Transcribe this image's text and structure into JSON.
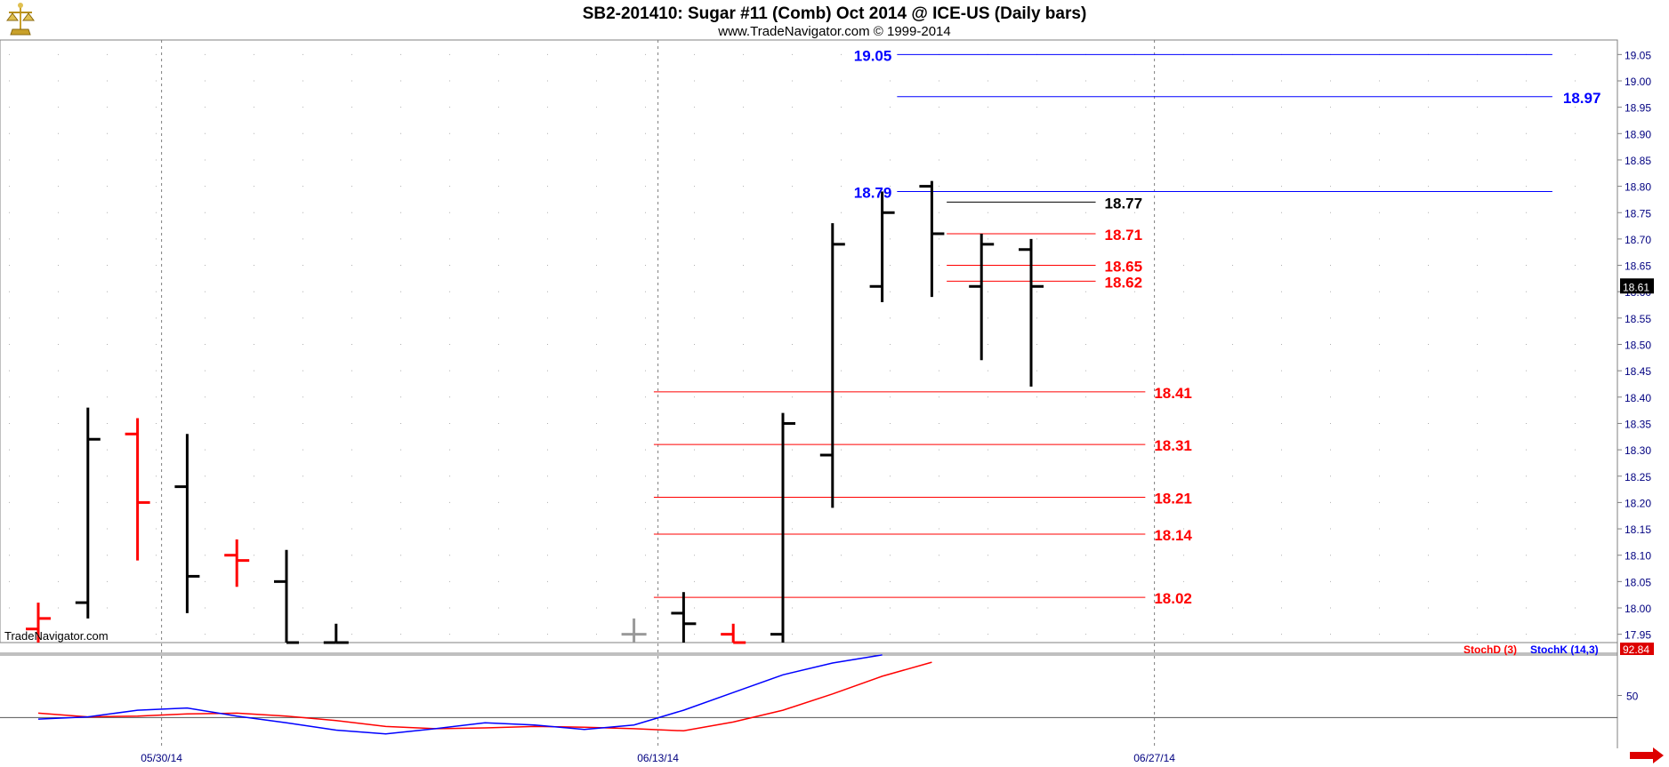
{
  "header": {
    "title": "SB2-201410:  Sugar #11 (Comb) Oct 2014 @ ICE-US  (Daily bars)",
    "subtitle": "www.TradeNavigator.com © 1999-2014",
    "logo_icon": "scales-icon"
  },
  "watermark": "TradeNavigator.com",
  "colors": {
    "background": "#ffffff",
    "bar_up": "#000000",
    "bar_down": "#ff0000",
    "level_blue": "#0000ff",
    "level_red": "#ff0000",
    "stoch_k": "#0000ff",
    "stoch_d": "#ff0000",
    "axis_text": "#000080"
  },
  "chart_data": [
    {
      "type": "ohlc",
      "title": "SB2-201410:  Sugar #11 (Comb) Oct 2014 @ ICE-US  (Daily bars)",
      "ylim": [
        17.93,
        19.1
      ],
      "y_ticks": [
        "17.95",
        "18.00",
        "18.05",
        "18.10",
        "18.15",
        "18.20",
        "18.25",
        "18.30",
        "18.35",
        "18.40",
        "18.45",
        "18.50",
        "18.55",
        "18.60",
        "18.65",
        "18.70",
        "18.75",
        "18.80",
        "18.85",
        "18.90",
        "18.95",
        "19.00",
        "19.05"
      ],
      "x_date_labels": [
        {
          "label": "05/30/14",
          "index": 2
        },
        {
          "label": "06/13/14",
          "index": 12
        },
        {
          "label": "06/27/14",
          "index": 22
        }
      ],
      "last_price": "18.61",
      "bars": [
        {
          "open": 17.96,
          "high": 18.01,
          "low": 17.93,
          "close": 17.98,
          "color": "red"
        },
        {
          "open": 18.01,
          "high": 18.38,
          "low": 17.98,
          "close": 18.32,
          "color": "black"
        },
        {
          "open": 18.33,
          "high": 18.36,
          "low": 18.09,
          "close": 18.2,
          "color": "red"
        },
        {
          "open": 18.23,
          "high": 18.33,
          "low": 17.99,
          "close": 18.06,
          "color": "black"
        },
        {
          "open": 18.1,
          "high": 18.13,
          "low": 18.04,
          "close": 18.09,
          "color": "red"
        },
        {
          "open": 18.05,
          "high": 18.11,
          "low": 17.93,
          "close": 17.93,
          "color": "black"
        },
        {
          "open": 17.93,
          "high": 17.97,
          "low": 17.93,
          "close": 17.93,
          "color": "black"
        },
        null,
        null,
        null,
        null,
        null,
        {
          "open": 17.95,
          "high": 17.98,
          "low": 17.93,
          "close": 17.95,
          "color": "gray"
        },
        {
          "open": 17.99,
          "high": 18.03,
          "low": 17.93,
          "close": 17.97,
          "color": "black"
        },
        {
          "open": 17.95,
          "high": 17.97,
          "low": 17.93,
          "close": 17.93,
          "color": "red"
        },
        {
          "open": 17.95,
          "high": 18.37,
          "low": 17.93,
          "close": 18.35,
          "color": "black"
        },
        {
          "open": 18.29,
          "high": 18.73,
          "low": 18.19,
          "close": 18.69,
          "color": "black"
        },
        {
          "open": 18.61,
          "high": 18.79,
          "low": 18.58,
          "close": 18.75,
          "color": "black"
        },
        {
          "open": 18.8,
          "high": 18.81,
          "low": 18.59,
          "close": 18.71,
          "color": "black"
        },
        {
          "open": 18.61,
          "high": 18.71,
          "low": 18.47,
          "close": 18.69,
          "color": "black"
        },
        {
          "open": 18.68,
          "high": 18.7,
          "low": 18.42,
          "close": 18.61,
          "color": "black"
        }
      ],
      "levels": [
        {
          "value": 19.05,
          "label": "19.05",
          "color": "blue",
          "from": 17.3,
          "to": 30.5,
          "label_side": "left"
        },
        {
          "value": 18.97,
          "label": "18.97",
          "color": "blue",
          "from": 17.3,
          "to": 30.5,
          "label_side": "right"
        },
        {
          "value": 18.79,
          "label": "18.79",
          "color": "blue",
          "from": 17.3,
          "to": 30.5,
          "label_side": "left"
        },
        {
          "value": 18.77,
          "label": "18.77",
          "color": "black",
          "from": 18.3,
          "to": 21.3,
          "label_side": "right"
        },
        {
          "value": 18.71,
          "label": "18.71",
          "color": "red",
          "from": 18.3,
          "to": 21.3,
          "label_side": "right"
        },
        {
          "value": 18.65,
          "label": "18.65",
          "color": "red",
          "from": 18.3,
          "to": 21.3,
          "label_side": "right"
        },
        {
          "value": 18.62,
          "label": "18.62",
          "color": "red",
          "from": 18.3,
          "to": 21.3,
          "label_side": "right"
        },
        {
          "value": 18.41,
          "label": "18.41",
          "color": "red",
          "from": 12.4,
          "to": 22.3,
          "label_side": "right"
        },
        {
          "value": 18.31,
          "label": "18.31",
          "color": "red",
          "from": 12.4,
          "to": 22.3,
          "label_side": "right"
        },
        {
          "value": 18.21,
          "label": "18.21",
          "color": "red",
          "from": 12.4,
          "to": 22.3,
          "label_side": "right"
        },
        {
          "value": 18.14,
          "label": "18.14",
          "color": "red",
          "from": 12.4,
          "to": 22.3,
          "label_side": "right"
        },
        {
          "value": 18.02,
          "label": "18.02",
          "color": "red",
          "from": 12.4,
          "to": 22.3,
          "label_side": "right"
        }
      ]
    },
    {
      "type": "line",
      "ylim": [
        0,
        100
      ],
      "y_ticks": [
        "50"
      ],
      "reference_line": 20,
      "current_value": "92.84",
      "series": [
        {
          "name": "StochD (3)",
          "color": "red",
          "points": [
            [
              0,
              26
            ],
            [
              1,
              21
            ],
            [
              2,
              22
            ],
            [
              3,
              25
            ],
            [
              4,
              26
            ],
            [
              5,
              22
            ],
            [
              6,
              16
            ],
            [
              7,
              8
            ],
            [
              8,
              5
            ],
            [
              9,
              6
            ],
            [
              10,
              8
            ],
            [
              11,
              7
            ],
            [
              12,
              5
            ],
            [
              13,
              2
            ],
            [
              14,
              14
            ],
            [
              15,
              30
            ],
            [
              16,
              52
            ],
            [
              17,
              76
            ],
            [
              18,
              95
            ]
          ]
        },
        {
          "name": "StochK (14,3)",
          "color": "blue",
          "points": [
            [
              0,
              18
            ],
            [
              1,
              21
            ],
            [
              2,
              30
            ],
            [
              3,
              33
            ],
            [
              4,
              22
            ],
            [
              5,
              13
            ],
            [
              6,
              3
            ],
            [
              7,
              -2
            ],
            [
              8,
              5
            ],
            [
              9,
              13
            ],
            [
              10,
              10
            ],
            [
              11,
              4
            ],
            [
              12,
              10
            ],
            [
              13,
              30
            ],
            [
              14,
              54
            ],
            [
              15,
              78
            ],
            [
              16,
              94
            ],
            [
              17,
              105
            ]
          ]
        }
      ]
    }
  ]
}
